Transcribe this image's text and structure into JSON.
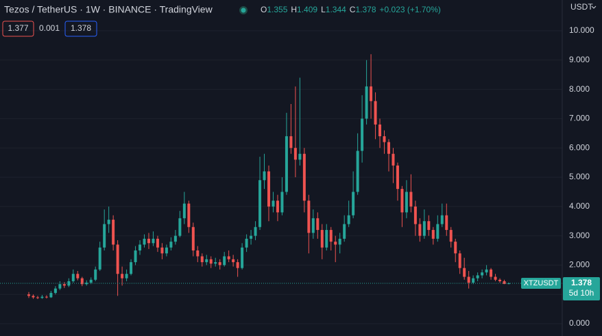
{
  "chart_data": {
    "type": "candlestick",
    "title": "Tezos / TetherUS · 1W · BINANCE · TradingView",
    "currency": "USDT",
    "symbol": "XTZUSDT",
    "countdown": "5d 10h",
    "ohlc_keys": [
      "O",
      "H",
      "L",
      "C"
    ],
    "change": "+0.023 (+1.70%)",
    "bid": 1.377,
    "spread": 0.001,
    "ask": 1.378,
    "up_color": "#26a69a",
    "down_color": "#ef5350",
    "grid": true,
    "ylim": [
      0,
      10.6
    ],
    "yticks": [
      {
        "value": 0,
        "label": "0.000"
      },
      {
        "value": 1,
        "label": "1.000"
      },
      {
        "value": 2,
        "label": "2.000"
      },
      {
        "value": 3,
        "label": "3.000"
      },
      {
        "value": 4,
        "label": "4.000"
      },
      {
        "value": 5,
        "label": "5.000"
      },
      {
        "value": 6,
        "label": "6.000"
      },
      {
        "value": 7,
        "label": "7.000"
      },
      {
        "value": 8,
        "label": "8.000"
      },
      {
        "value": 9,
        "label": "9.000"
      },
      {
        "value": 10,
        "label": "10.000"
      }
    ],
    "ohlc": [
      [
        1.0,
        1.08,
        0.88,
        0.95
      ],
      [
        0.95,
        1.0,
        0.85,
        0.9
      ],
      [
        0.9,
        0.95,
        0.84,
        0.88
      ],
      [
        0.88,
        0.98,
        0.85,
        0.92
      ],
      [
        0.92,
        0.97,
        0.86,
        0.9
      ],
      [
        0.9,
        1.12,
        0.88,
        1.05
      ],
      [
        1.05,
        1.28,
        1.0,
        1.2
      ],
      [
        1.2,
        1.45,
        1.15,
        1.35
      ],
      [
        1.35,
        1.42,
        1.22,
        1.3
      ],
      [
        1.3,
        1.55,
        1.25,
        1.45
      ],
      [
        1.45,
        1.85,
        1.4,
        1.7
      ],
      [
        1.7,
        1.8,
        1.48,
        1.55
      ],
      [
        1.55,
        1.6,
        1.28,
        1.35
      ],
      [
        1.35,
        1.48,
        1.3,
        1.4
      ],
      [
        1.4,
        1.58,
        1.35,
        1.5
      ],
      [
        1.5,
        1.95,
        1.45,
        1.85
      ],
      [
        1.85,
        2.8,
        1.8,
        2.6
      ],
      [
        2.6,
        3.9,
        2.5,
        3.4
      ],
      [
        3.4,
        4.0,
        3.1,
        3.55
      ],
      [
        3.55,
        3.7,
        2.5,
        2.7
      ],
      [
        2.7,
        2.85,
        0.95,
        1.7
      ],
      [
        1.7,
        1.95,
        1.3,
        1.55
      ],
      [
        1.55,
        1.85,
        1.45,
        1.7
      ],
      [
        1.7,
        2.2,
        1.65,
        2.1
      ],
      [
        2.1,
        2.65,
        2.0,
        2.5
      ],
      [
        2.5,
        2.85,
        2.35,
        2.7
      ],
      [
        2.7,
        3.05,
        2.6,
        2.9
      ],
      [
        2.9,
        3.1,
        2.55,
        2.75
      ],
      [
        2.75,
        3.15,
        2.65,
        2.9
      ],
      [
        2.9,
        3.0,
        2.45,
        2.6
      ],
      [
        2.6,
        2.75,
        2.2,
        2.4
      ],
      [
        2.4,
        2.7,
        2.3,
        2.6
      ],
      [
        2.6,
        2.95,
        2.5,
        2.8
      ],
      [
        2.8,
        3.2,
        2.7,
        3.0
      ],
      [
        3.0,
        3.85,
        2.95,
        3.6
      ],
      [
        3.6,
        4.5,
        3.4,
        4.1
      ],
      [
        4.1,
        4.2,
        3.1,
        3.3
      ],
      [
        3.3,
        3.45,
        2.3,
        2.5
      ],
      [
        2.5,
        2.65,
        2.1,
        2.3
      ],
      [
        2.3,
        2.4,
        1.95,
        2.1
      ],
      [
        2.1,
        2.35,
        2.0,
        2.2
      ],
      [
        2.2,
        2.3,
        1.9,
        2.05
      ],
      [
        2.05,
        2.25,
        1.95,
        2.1
      ],
      [
        2.1,
        2.2,
        1.85,
        2.0
      ],
      [
        2.0,
        2.45,
        1.95,
        2.3
      ],
      [
        2.3,
        2.5,
        2.1,
        2.2
      ],
      [
        2.2,
        2.35,
        1.95,
        2.1
      ],
      [
        2.1,
        2.2,
        1.6,
        1.9
      ],
      [
        1.9,
        2.75,
        1.85,
        2.6
      ],
      [
        2.6,
        3.05,
        2.45,
        2.9
      ],
      [
        2.9,
        3.2,
        2.7,
        3.0
      ],
      [
        3.0,
        3.5,
        2.85,
        3.3
      ],
      [
        3.3,
        5.7,
        3.2,
        4.9
      ],
      [
        4.9,
        5.8,
        4.6,
        5.2
      ],
      [
        5.2,
        5.4,
        3.5,
        4.0
      ],
      [
        4.0,
        4.5,
        3.8,
        4.2
      ],
      [
        4.2,
        4.4,
        3.5,
        3.8
      ],
      [
        3.8,
        5.0,
        3.7,
        4.5
      ],
      [
        4.5,
        7.2,
        4.4,
        6.4
      ],
      [
        6.4,
        7.5,
        5.8,
        6.0
      ],
      [
        6.0,
        8.1,
        5.0,
        5.6
      ],
      [
        5.6,
        8.4,
        5.4,
        5.8
      ],
      [
        5.8,
        6.0,
        3.8,
        4.2
      ],
      [
        4.2,
        4.4,
        2.4,
        3.1
      ],
      [
        3.1,
        3.9,
        2.9,
        3.6
      ],
      [
        3.6,
        3.8,
        2.9,
        3.2
      ],
      [
        3.2,
        3.4,
        2.2,
        2.6
      ],
      [
        2.6,
        3.4,
        2.5,
        3.2
      ],
      [
        3.2,
        3.3,
        2.5,
        2.8
      ],
      [
        2.8,
        3.0,
        2.1,
        2.7
      ],
      [
        2.7,
        3.1,
        2.4,
        2.9
      ],
      [
        2.9,
        3.7,
        2.8,
        3.4
      ],
      [
        3.4,
        4.2,
        3.3,
        3.7
      ],
      [
        3.7,
        5.2,
        3.6,
        4.5
      ],
      [
        4.5,
        6.5,
        4.4,
        5.9
      ],
      [
        5.9,
        7.8,
        5.5,
        7.0
      ],
      [
        7.0,
        9.0,
        6.8,
        8.1
      ],
      [
        8.1,
        9.2,
        7.0,
        7.6
      ],
      [
        7.6,
        7.9,
        6.3,
        6.8
      ],
      [
        6.8,
        7.0,
        6.0,
        6.4
      ],
      [
        6.4,
        6.6,
        5.8,
        6.2
      ],
      [
        6.2,
        6.3,
        5.2,
        5.8
      ],
      [
        5.8,
        6.0,
        4.8,
        5.4
      ],
      [
        5.4,
        5.5,
        4.2,
        4.6
      ],
      [
        4.6,
        4.7,
        3.3,
        3.8
      ],
      [
        3.8,
        4.9,
        3.6,
        4.5
      ],
      [
        4.5,
        5.1,
        3.8,
        4.0
      ],
      [
        4.0,
        4.2,
        3.0,
        3.4
      ],
      [
        3.4,
        3.6,
        2.8,
        3.0
      ],
      [
        3.0,
        3.9,
        2.9,
        3.5
      ],
      [
        3.5,
        3.7,
        3.0,
        3.2
      ],
      [
        3.2,
        3.3,
        2.7,
        2.9
      ],
      [
        2.9,
        3.7,
        2.8,
        3.4
      ],
      [
        3.4,
        4.1,
        3.3,
        3.7
      ],
      [
        3.7,
        4.1,
        3.0,
        3.2
      ],
      [
        3.2,
        3.3,
        2.6,
        2.8
      ],
      [
        2.8,
        2.9,
        2.1,
        2.4
      ],
      [
        2.4,
        2.5,
        1.7,
        1.9
      ],
      [
        1.9,
        2.25,
        1.5,
        1.6
      ],
      [
        1.6,
        1.8,
        1.2,
        1.4
      ],
      [
        1.4,
        1.65,
        1.35,
        1.55
      ],
      [
        1.55,
        1.75,
        1.45,
        1.65
      ],
      [
        1.65,
        1.85,
        1.55,
        1.75
      ],
      [
        1.75,
        2.0,
        1.65,
        1.85
      ],
      [
        1.85,
        1.9,
        1.5,
        1.6
      ],
      [
        1.6,
        1.7,
        1.45,
        1.5
      ],
      [
        1.5,
        1.55,
        1.4,
        1.45
      ],
      [
        1.45,
        1.5,
        1.35,
        1.355
      ],
      [
        1.355,
        1.409,
        1.344,
        1.378
      ]
    ]
  }
}
